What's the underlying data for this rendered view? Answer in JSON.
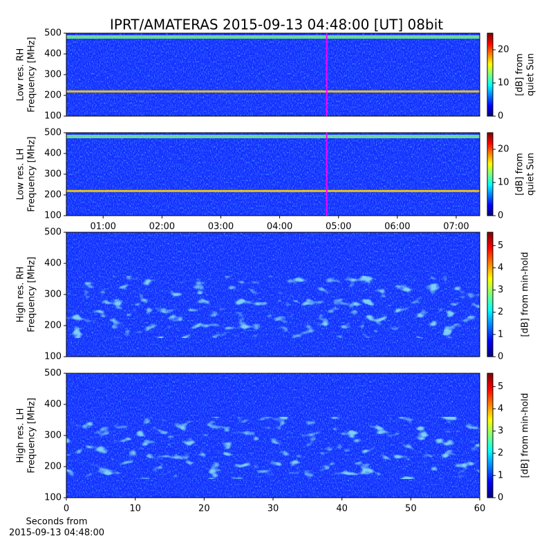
{
  "title": "IPRT/AMATERAS 2015-09-13 04:48:00 [UT]   08bit",
  "chart_data": [
    {
      "type": "heatmap",
      "ylabel": [
        "Low res. RH",
        "Frequency [MHz]"
      ],
      "ylim": [
        100,
        500
      ],
      "yticks": [
        100,
        200,
        300,
        400,
        500
      ],
      "marker_x": 4.8,
      "marker_color": "#ff00ff",
      "xlim": [
        0.375,
        7.4
      ],
      "colorbar": {
        "label": [
          "[dB] from",
          "quiet Sun"
        ],
        "lim": [
          0,
          25
        ],
        "ticks": [
          0,
          10,
          20
        ]
      }
    },
    {
      "type": "heatmap",
      "ylabel": [
        "Low res. LH",
        "Frequency [MHz]"
      ],
      "ylim": [
        100,
        500
      ],
      "yticks": [
        100,
        200,
        300,
        400,
        500
      ],
      "marker_x": 4.8,
      "marker_color": "#ff00ff",
      "xlim": [
        0.375,
        7.4
      ],
      "xticks": [
        {
          "value": 1,
          "label": "01:00"
        },
        {
          "value": 2,
          "label": "02:00"
        },
        {
          "value": 3,
          "label": "03:00"
        },
        {
          "value": 4,
          "label": "04:00"
        },
        {
          "value": 5,
          "label": "05:00"
        },
        {
          "value": 6,
          "label": "06:00"
        },
        {
          "value": 7,
          "label": "07:00"
        }
      ],
      "colorbar": {
        "label": [
          "[dB] from",
          "quiet Sun"
        ],
        "lim": [
          0,
          25
        ],
        "ticks": [
          0,
          10,
          20
        ]
      }
    },
    {
      "type": "heatmap",
      "ylabel": [
        "High res. RH",
        "Frequency [MHz]"
      ],
      "ylim": [
        100,
        500
      ],
      "yticks": [
        100,
        200,
        300,
        400,
        500
      ],
      "colorbar": {
        "label": [
          "[dB] from min-hold"
        ],
        "lim": [
          0,
          5.6
        ],
        "ticks": [
          0,
          1,
          2,
          3,
          4,
          5
        ]
      }
    },
    {
      "type": "heatmap",
      "ylabel": [
        "High res. LH",
        "Frequency [MHz]"
      ],
      "ylim": [
        100,
        500
      ],
      "yticks": [
        100,
        200,
        300,
        400,
        500
      ],
      "xlim": [
        0,
        60
      ],
      "xticks": [
        0,
        10,
        20,
        30,
        40,
        50,
        60
      ],
      "xlabel": [
        "Seconds from",
        "2015-09-13 04:48:00"
      ],
      "colorbar": {
        "label": [
          "[dB] from min-hold"
        ],
        "lim": [
          0,
          5.6
        ],
        "ticks": [
          0,
          1,
          2,
          3,
          4,
          5
        ]
      }
    }
  ]
}
